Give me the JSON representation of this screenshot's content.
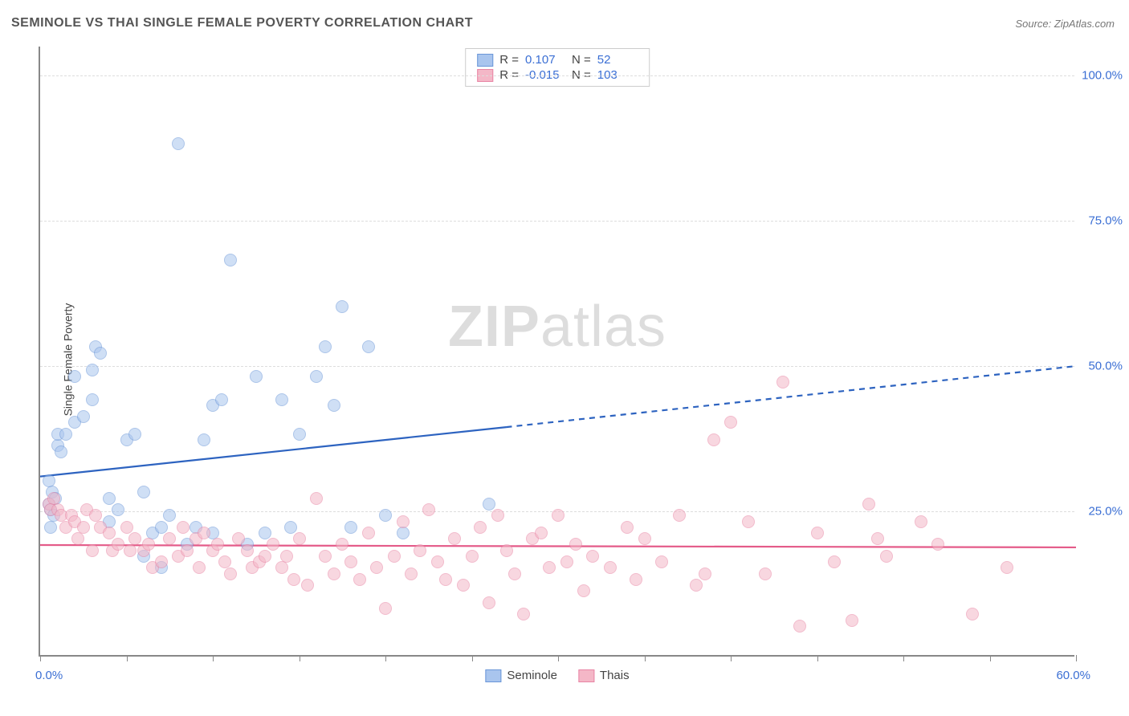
{
  "title": "SEMINOLE VS THAI SINGLE FEMALE POVERTY CORRELATION CHART",
  "source": "Source: ZipAtlas.com",
  "watermark_prefix": "ZIP",
  "watermark_suffix": "atlas",
  "y_axis_title": "Single Female Poverty",
  "chart": {
    "type": "scatter",
    "xlim": [
      0,
      60
    ],
    "ylim": [
      0,
      105
    ],
    "x_min_label": "0.0%",
    "x_max_label": "60.0%",
    "y_ticks": [
      {
        "v": 25,
        "label": "25.0%"
      },
      {
        "v": 50,
        "label": "50.0%"
      },
      {
        "v": 75,
        "label": "75.0%"
      },
      {
        "v": 100,
        "label": "100.0%"
      }
    ],
    "x_tick_step": 5,
    "background_color": "#ffffff",
    "grid_color": "#dddddd",
    "axis_color": "#888888",
    "tick_label_color": "#3b6fd4",
    "marker_radius": 8,
    "series": [
      {
        "name": "Seminole",
        "fill_color": "#a9c5ee",
        "fill_opacity": 0.55,
        "stroke_color": "#6a96d8",
        "r_value": "0.107",
        "n_value": "52",
        "trend": {
          "x1": 0,
          "y1": 31,
          "x2_solid": 27,
          "y2_solid": 39.5,
          "x2": 60,
          "y2": 50,
          "color": "#2d63c0",
          "width": 2.2
        },
        "points": [
          [
            0.5,
            26
          ],
          [
            0.6,
            25
          ],
          [
            0.7,
            28
          ],
          [
            0.8,
            24
          ],
          [
            0.9,
            27
          ],
          [
            0.5,
            30
          ],
          [
            0.6,
            22
          ],
          [
            1,
            36
          ],
          [
            1.2,
            35
          ],
          [
            1,
            38
          ],
          [
            2,
            40
          ],
          [
            2.5,
            41
          ],
          [
            1.5,
            38
          ],
          [
            2,
            48
          ],
          [
            3,
            44
          ],
          [
            3,
            49
          ],
          [
            3.2,
            53
          ],
          [
            3.5,
            52
          ],
          [
            4,
            27
          ],
          [
            4,
            23
          ],
          [
            4.5,
            25
          ],
          [
            5,
            37
          ],
          [
            5.5,
            38
          ],
          [
            6,
            28
          ],
          [
            6,
            17
          ],
          [
            6.5,
            21
          ],
          [
            7,
            22
          ],
          [
            7.5,
            24
          ],
          [
            7,
            15
          ],
          [
            8,
            88
          ],
          [
            8.5,
            19
          ],
          [
            9,
            22
          ],
          [
            9.5,
            37
          ],
          [
            10,
            21
          ],
          [
            10,
            43
          ],
          [
            10.5,
            44
          ],
          [
            11,
            68
          ],
          [
            12,
            19
          ],
          [
            12.5,
            48
          ],
          [
            13,
            21
          ],
          [
            14,
            44
          ],
          [
            14.5,
            22
          ],
          [
            15,
            38
          ],
          [
            16,
            48
          ],
          [
            16.5,
            53
          ],
          [
            17,
            43
          ],
          [
            17.5,
            60
          ],
          [
            18,
            22
          ],
          [
            19,
            53
          ],
          [
            20,
            24
          ],
          [
            21,
            21
          ],
          [
            26,
            26
          ]
        ]
      },
      {
        "name": "Thais",
        "fill_color": "#f4b7c7",
        "fill_opacity": 0.55,
        "stroke_color": "#e884a4",
        "r_value": "-0.015",
        "n_value": "103",
        "trend": {
          "x1": 0,
          "y1": 19.2,
          "x2_solid": 60,
          "y2_solid": 18.8,
          "x2": 60,
          "y2": 18.8,
          "color": "#e45b89",
          "width": 2.2
        },
        "points": [
          [
            0.5,
            26
          ],
          [
            0.6,
            25
          ],
          [
            0.8,
            27
          ],
          [
            1,
            25
          ],
          [
            1.2,
            24
          ],
          [
            1.5,
            22
          ],
          [
            1.8,
            24
          ],
          [
            2,
            23
          ],
          [
            2.2,
            20
          ],
          [
            2.5,
            22
          ],
          [
            2.7,
            25
          ],
          [
            3,
            18
          ],
          [
            3.2,
            24
          ],
          [
            3.5,
            22
          ],
          [
            4,
            21
          ],
          [
            4.2,
            18
          ],
          [
            4.5,
            19
          ],
          [
            5,
            22
          ],
          [
            5.2,
            18
          ],
          [
            5.5,
            20
          ],
          [
            6,
            18
          ],
          [
            6.3,
            19
          ],
          [
            6.5,
            15
          ],
          [
            7,
            16
          ],
          [
            7.5,
            20
          ],
          [
            8,
            17
          ],
          [
            8.3,
            22
          ],
          [
            8.5,
            18
          ],
          [
            9,
            20
          ],
          [
            9.2,
            15
          ],
          [
            9.5,
            21
          ],
          [
            10,
            18
          ],
          [
            10.3,
            19
          ],
          [
            10.7,
            16
          ],
          [
            11,
            14
          ],
          [
            11.5,
            20
          ],
          [
            12,
            18
          ],
          [
            12.3,
            15
          ],
          [
            12.7,
            16
          ],
          [
            13,
            17
          ],
          [
            13.5,
            19
          ],
          [
            14,
            15
          ],
          [
            14.3,
            17
          ],
          [
            14.7,
            13
          ],
          [
            15,
            20
          ],
          [
            15.5,
            12
          ],
          [
            16,
            27
          ],
          [
            16.5,
            17
          ],
          [
            17,
            14
          ],
          [
            17.5,
            19
          ],
          [
            18,
            16
          ],
          [
            18.5,
            13
          ],
          [
            19,
            21
          ],
          [
            19.5,
            15
          ],
          [
            20,
            8
          ],
          [
            20.5,
            17
          ],
          [
            21,
            23
          ],
          [
            21.5,
            14
          ],
          [
            22,
            18
          ],
          [
            22.5,
            25
          ],
          [
            23,
            16
          ],
          [
            23.5,
            13
          ],
          [
            24,
            20
          ],
          [
            24.5,
            12
          ],
          [
            25,
            17
          ],
          [
            25.5,
            22
          ],
          [
            26,
            9
          ],
          [
            26.5,
            24
          ],
          [
            27,
            18
          ],
          [
            27.5,
            14
          ],
          [
            28,
            7
          ],
          [
            28.5,
            20
          ],
          [
            29,
            21
          ],
          [
            29.5,
            15
          ],
          [
            30,
            24
          ],
          [
            30.5,
            16
          ],
          [
            31,
            19
          ],
          [
            31.5,
            11
          ],
          [
            32,
            17
          ],
          [
            33,
            15
          ],
          [
            34,
            22
          ],
          [
            34.5,
            13
          ],
          [
            35,
            20
          ],
          [
            36,
            16
          ],
          [
            37,
            24
          ],
          [
            38,
            12
          ],
          [
            38.5,
            14
          ],
          [
            39,
            37
          ],
          [
            40,
            40
          ],
          [
            41,
            23
          ],
          [
            42,
            14
          ],
          [
            43,
            47
          ],
          [
            44,
            5
          ],
          [
            45,
            21
          ],
          [
            46,
            16
          ],
          [
            47,
            6
          ],
          [
            48,
            26
          ],
          [
            48.5,
            20
          ],
          [
            49,
            17
          ],
          [
            51,
            23
          ],
          [
            52,
            19
          ],
          [
            54,
            7
          ],
          [
            56,
            15
          ]
        ]
      }
    ]
  },
  "legend_top": {
    "r_label": "R =",
    "n_label": "N ="
  },
  "legend_bottom": [
    "Seminole",
    "Thais"
  ]
}
